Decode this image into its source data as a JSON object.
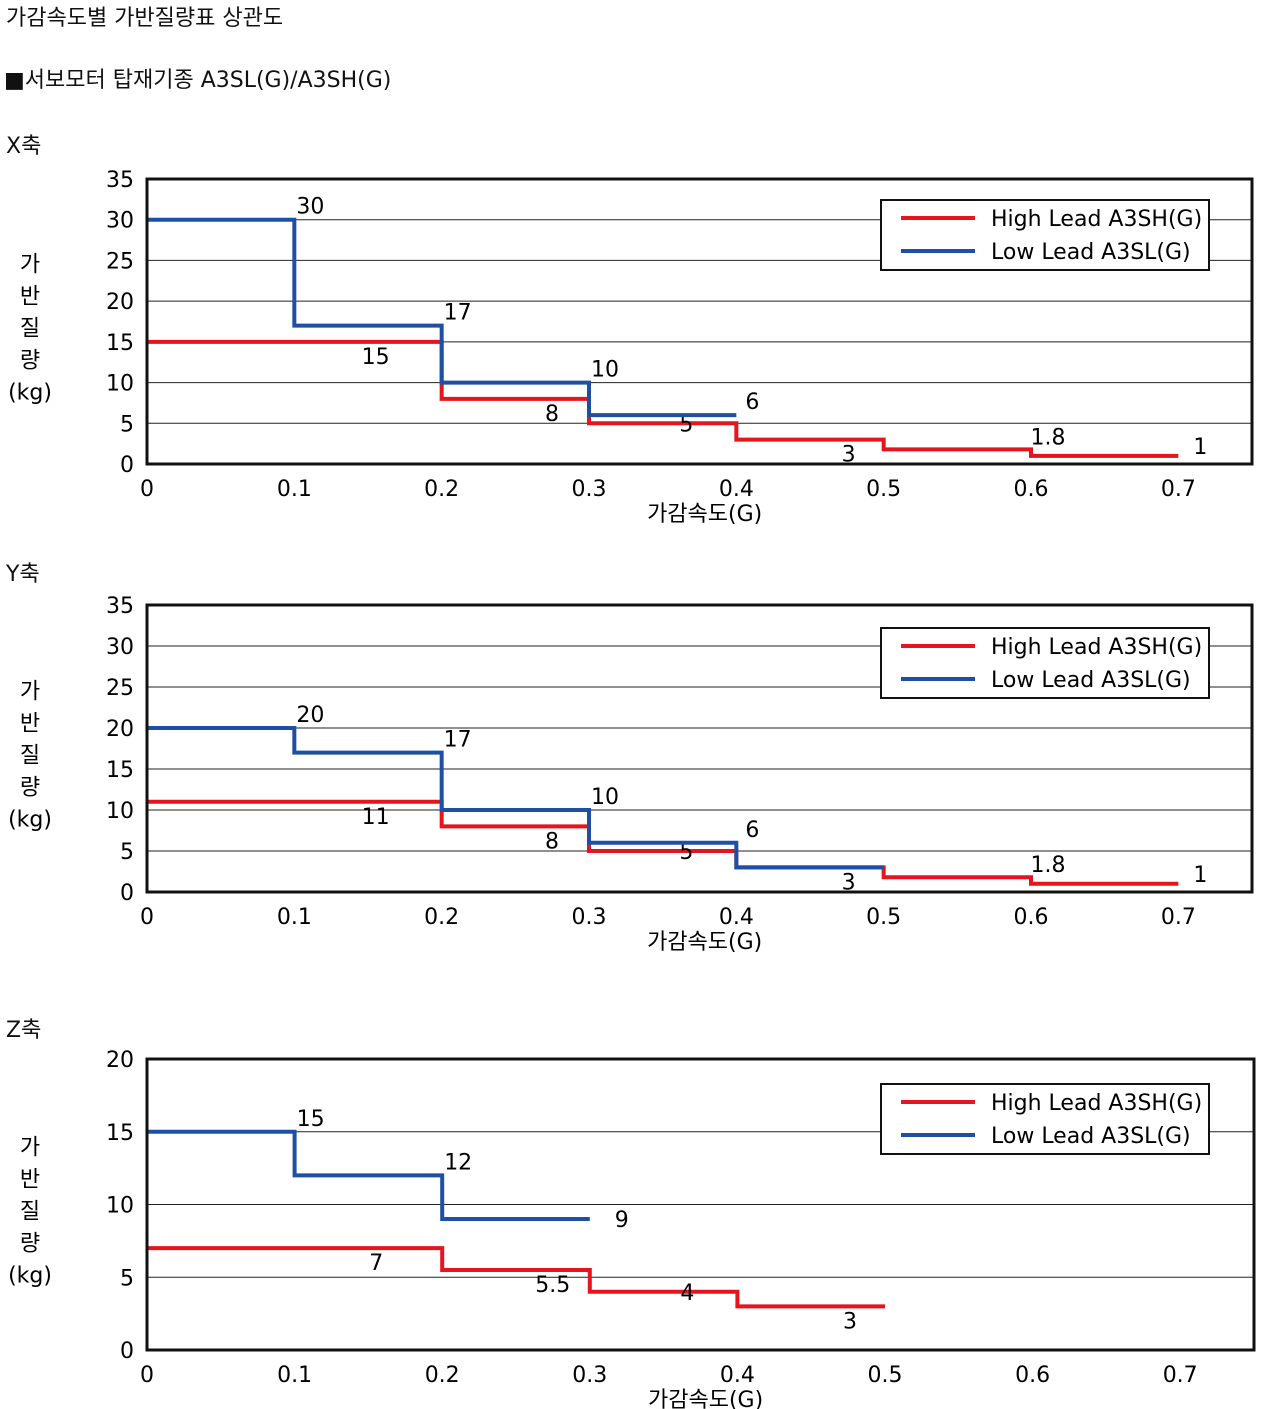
{
  "header": {
    "title": "가감속도별 가반질량표 상관도",
    "subtitle": "■서보모터 탑재기종 A3SL(G)/A3SH(G)"
  },
  "colors": {
    "high": "#e5141d",
    "low": "#1f4fa3",
    "frame": "#111111",
    "grid": "#222222"
  },
  "chart_data": [
    {
      "id": "x",
      "caption": "X축",
      "type": "line",
      "step": true,
      "xlabel": "가감속도(G)",
      "ylabel": [
        "가",
        "반",
        "질",
        "량",
        "(kg)"
      ],
      "xlim": [
        0,
        0.75
      ],
      "ylim": [
        0,
        35
      ],
      "xticks": [
        "0",
        "0.1",
        "0.2",
        "0.3",
        "0.4",
        "0.5",
        "0.6",
        "0.7"
      ],
      "yticks": [
        "0",
        "5",
        "10",
        "15",
        "20",
        "25",
        "30",
        "35"
      ],
      "legend_position": "top-right",
      "series": [
        {
          "name": "High Lead A3SH(G)",
          "color_key": "high",
          "steps": [
            [
              0,
              0.2,
              15
            ],
            [
              0.2,
              0.3,
              8
            ],
            [
              0.3,
              0.4,
              5
            ],
            [
              0.4,
              0.5,
              3
            ],
            [
              0.5,
              0.6,
              1.8
            ],
            [
              0.6,
              0.7,
              1
            ]
          ],
          "labels": [
            "15",
            "8",
            "5",
            "3",
            "1.8",
            "1"
          ]
        },
        {
          "name": "Low Lead A3SL(G)",
          "color_key": "low",
          "steps": [
            [
              0,
              0.1,
              30
            ],
            [
              0.1,
              0.2,
              17
            ],
            [
              0.2,
              0.3,
              10
            ],
            [
              0.3,
              0.4,
              6
            ]
          ],
          "labels": [
            "30",
            "17",
            "10",
            "6"
          ]
        }
      ]
    },
    {
      "id": "y",
      "caption": "Y축",
      "type": "line",
      "step": true,
      "xlabel": "가감속도(G)",
      "ylabel": [
        "가",
        "반",
        "질",
        "량",
        "(kg)"
      ],
      "xlim": [
        0,
        0.75
      ],
      "ylim": [
        0,
        35
      ],
      "xticks": [
        "0",
        "0.1",
        "0.2",
        "0.3",
        "0.4",
        "0.5",
        "0.6",
        "0.7"
      ],
      "yticks": [
        "0",
        "5",
        "10",
        "15",
        "20",
        "25",
        "30",
        "35"
      ],
      "legend_position": "top-right",
      "series": [
        {
          "name": "High Lead A3SH(G)",
          "color_key": "high",
          "steps": [
            [
              0,
              0.2,
              11
            ],
            [
              0.2,
              0.3,
              8
            ],
            [
              0.3,
              0.4,
              5
            ],
            [
              0.4,
              0.5,
              3
            ],
            [
              0.5,
              0.6,
              1.8
            ],
            [
              0.6,
              0.7,
              1
            ]
          ],
          "labels": [
            "11",
            "8",
            "5",
            "3",
            "1.8",
            "1"
          ]
        },
        {
          "name": "Low Lead A3SL(G)",
          "color_key": "low",
          "steps": [
            [
              0,
              0.1,
              20
            ],
            [
              0.1,
              0.2,
              17
            ],
            [
              0.2,
              0.3,
              10
            ],
            [
              0.3,
              0.4,
              6
            ],
            [
              0.4,
              0.5,
              3
            ]
          ],
          "labels": [
            "20",
            "17",
            "10",
            "6"
          ]
        }
      ]
    },
    {
      "id": "z",
      "caption": "Z축",
      "type": "line",
      "step": true,
      "xlabel": "가감속도(G)",
      "ylabel": [
        "가",
        "반",
        "질",
        "량",
        "(kg)"
      ],
      "xlim": [
        0,
        0.75
      ],
      "ylim": [
        0,
        20
      ],
      "xticks": [
        "0",
        "0.1",
        "0.2",
        "0.3",
        "0.4",
        "0.5",
        "0.6",
        "0.7"
      ],
      "yticks": [
        "0",
        "5",
        "10",
        "15",
        "20"
      ],
      "legend_position": "top-right",
      "series": [
        {
          "name": "High Lead A3SH(G)",
          "color_key": "high",
          "steps": [
            [
              0,
              0.2,
              7
            ],
            [
              0.2,
              0.3,
              5.5
            ],
            [
              0.3,
              0.4,
              4
            ],
            [
              0.4,
              0.5,
              3
            ]
          ],
          "labels": [
            "7",
            "5.5",
            "4",
            "3"
          ]
        },
        {
          "name": "Low Lead A3SL(G)",
          "color_key": "low",
          "steps": [
            [
              0,
              0.1,
              15
            ],
            [
              0.1,
              0.2,
              12
            ],
            [
              0.2,
              0.3,
              9
            ]
          ],
          "labels": [
            "15",
            "12",
            "9"
          ]
        }
      ]
    }
  ]
}
